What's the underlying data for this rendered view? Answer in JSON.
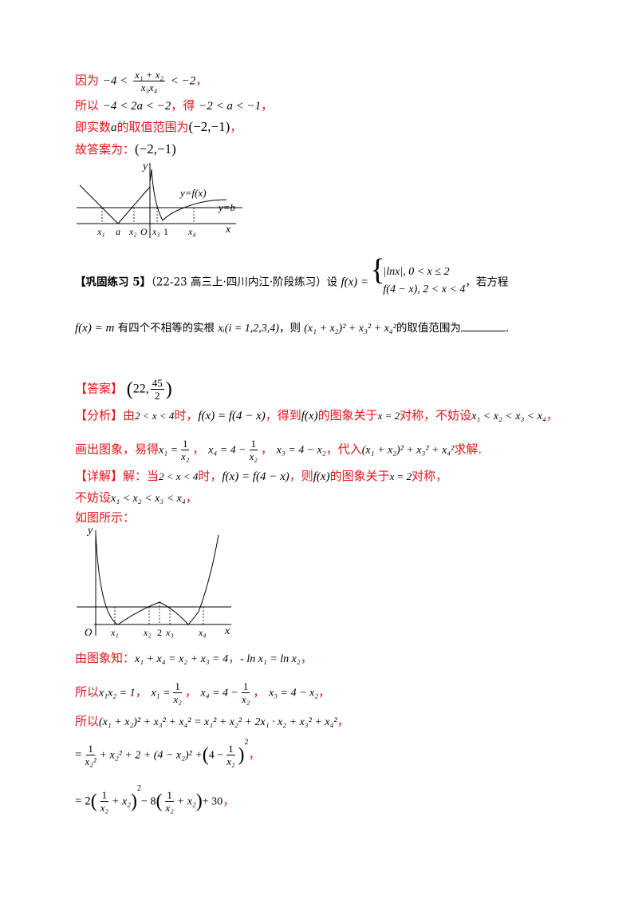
{
  "line1": {
    "prefix": "因为",
    "expr_left": "−4 <",
    "frac_num": "x₁ + x₂",
    "frac_den": "x₃x₄",
    "expr_right": "< −2",
    "suffix": "，"
  },
  "line2": {
    "prefix": "所以",
    "expr1": "−4 < 2a < −2",
    "mid": "，得",
    "expr2": "−2 < a < −1",
    "suffix": "，"
  },
  "line3": {
    "prefix": "即实数",
    "var": "a",
    "mid": "的取值范围为",
    "range": "(−2,−1)",
    "suffix": "，"
  },
  "line4": {
    "prefix": "故答案为：",
    "answer": "(−2,−1)"
  },
  "graph1": {
    "ylabel": "y",
    "xlabel": "x",
    "origin": "O",
    "curve_label": "y=f(x)",
    "line_label": "y=b",
    "ticks": [
      "x₁",
      "a",
      "x₂",
      "O",
      "x₃",
      "1",
      "x₄"
    ]
  },
  "exercise": {
    "tag": "【巩固练习 5】",
    "source": "（22-23 高三上·四川内江·阶段练习）设",
    "fx": "f(x) =",
    "case1": "|lnx|, 0 < x ≤ 2",
    "case2": "f(4 − x), 2 < x < 4",
    "tail": "，若方程",
    "line2_eq": "f(x) = m",
    "line2_mid": "有四个不相等的实根",
    "roots": "xᵢ(i = 1,2,3,4)",
    "line2_then": "，则",
    "expr": "(x₁ + x₂)² + x₃² + x₄²",
    "line2_end": "的取值范围为",
    "period": "."
  },
  "answer": {
    "tag": "【答案】",
    "open": "(",
    "left": "22,",
    "num": "45",
    "den": "2",
    "close": ")"
  },
  "analysis": {
    "tag": "【分析】",
    "t1": "由",
    "c1": "2 < x < 4",
    "t2": "时，",
    "e1": "f(x) = f(4 − x)",
    "t3": "，得到",
    "e2": "f(x)",
    "t4": "的图象关于",
    "e3": "x = 2",
    "t5": "对称，不妨设",
    "e4": "x₁ < x₂ < x₃ < x₄",
    "t6": "，",
    "l2a": "画出图象，易得",
    "l2x1": "x₁ =",
    "l2x4": "x₄ = 4 −",
    "l2x3": "x₃ = 4 − x₂",
    "l2t": "，代入",
    "l2expr": "(x₁ + x₂)² + x₃² + x₄²",
    "l2end": "求解."
  },
  "detail": {
    "tag": "【详解】",
    "t1": "解：当",
    "c1": "2 < x < 4",
    "t2": "时，",
    "e1": "f(x) = f(4 − x)",
    "t3": "，则",
    "e2": "f(x)",
    "t4": "的图象关于",
    "e3": "x = 2",
    "t5": "对称，",
    "l2": "不妨设",
    "l2e": "x₁ < x₂ < x₃ < x₄",
    "l2t": "，",
    "l3": "如图所示："
  },
  "graph2": {
    "ylabel": "y",
    "xlabel": "x",
    "origin": "O",
    "ticks": [
      "x₁",
      "x₂",
      "2",
      "x₃",
      "x₄"
    ]
  },
  "solution": {
    "s1_pre": "由图象知：",
    "s1_e1": "x₁ + x₄ = x₂ + x₃ = 4",
    "s1_e2": "- ln x₁ = ln x₂",
    "s1_end": "，",
    "s2_pre": "所以",
    "s2_e1": "x₁x₂ = 1",
    "s2_x1": "x₁ =",
    "s2_x4": "x₄ = 4 −",
    "s2_x3": "x₃ = 4 − x₂",
    "s2_end": "，",
    "s3_pre": "所以",
    "s3_expr": "(x₁ + x₂)² + x₃² + x₄² = x₁² + x₂² + 2x₁ · x₂ + x₃² + x₄²",
    "s3_end": "，",
    "s4_a": "=",
    "s4_b": "+ x₂² + 2 + (4 − x₂)² +",
    "s4_c": "4 −",
    "s4_end": "，",
    "s5_a": "= 2",
    "s5_b": "+ x₂",
    "s5_c": "− 8",
    "s5_d": "+ 30",
    "s5_end": "，",
    "one": "1",
    "x2": "x₂",
    "x2sq": "x₂²",
    "sq": "2"
  }
}
